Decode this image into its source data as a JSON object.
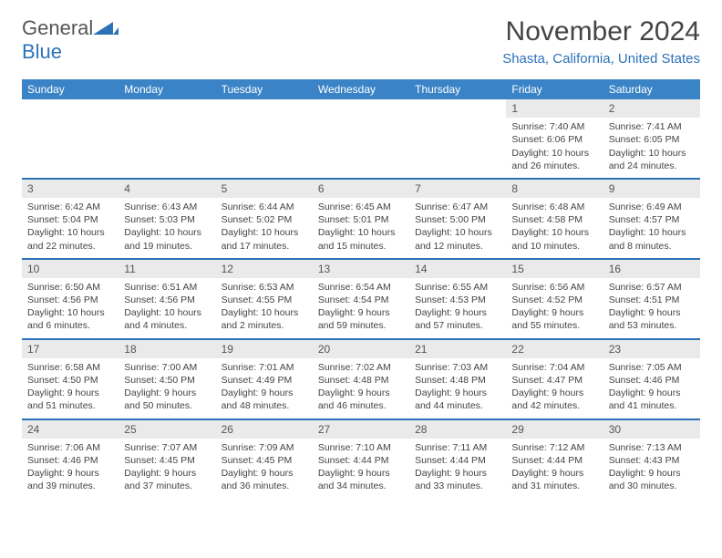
{
  "logo": {
    "text1": "General",
    "text2": "Blue"
  },
  "title": "November 2024",
  "location": "Shasta, California, United States",
  "colors": {
    "header_bg": "#3a83c6",
    "accent": "#2d72b8",
    "gray_bar": "#eaeaea",
    "text": "#444444"
  },
  "day_headers": [
    "Sunday",
    "Monday",
    "Tuesday",
    "Wednesday",
    "Thursday",
    "Friday",
    "Saturday"
  ],
  "weeks": [
    [
      {
        "day": "",
        "lines": []
      },
      {
        "day": "",
        "lines": []
      },
      {
        "day": "",
        "lines": []
      },
      {
        "day": "",
        "lines": []
      },
      {
        "day": "",
        "lines": []
      },
      {
        "day": "1",
        "lines": [
          "Sunrise: 7:40 AM",
          "Sunset: 6:06 PM",
          "Daylight: 10 hours",
          "and 26 minutes."
        ]
      },
      {
        "day": "2",
        "lines": [
          "Sunrise: 7:41 AM",
          "Sunset: 6:05 PM",
          "Daylight: 10 hours",
          "and 24 minutes."
        ]
      }
    ],
    [
      {
        "day": "3",
        "lines": [
          "Sunrise: 6:42 AM",
          "Sunset: 5:04 PM",
          "Daylight: 10 hours",
          "and 22 minutes."
        ]
      },
      {
        "day": "4",
        "lines": [
          "Sunrise: 6:43 AM",
          "Sunset: 5:03 PM",
          "Daylight: 10 hours",
          "and 19 minutes."
        ]
      },
      {
        "day": "5",
        "lines": [
          "Sunrise: 6:44 AM",
          "Sunset: 5:02 PM",
          "Daylight: 10 hours",
          "and 17 minutes."
        ]
      },
      {
        "day": "6",
        "lines": [
          "Sunrise: 6:45 AM",
          "Sunset: 5:01 PM",
          "Daylight: 10 hours",
          "and 15 minutes."
        ]
      },
      {
        "day": "7",
        "lines": [
          "Sunrise: 6:47 AM",
          "Sunset: 5:00 PM",
          "Daylight: 10 hours",
          "and 12 minutes."
        ]
      },
      {
        "day": "8",
        "lines": [
          "Sunrise: 6:48 AM",
          "Sunset: 4:58 PM",
          "Daylight: 10 hours",
          "and 10 minutes."
        ]
      },
      {
        "day": "9",
        "lines": [
          "Sunrise: 6:49 AM",
          "Sunset: 4:57 PM",
          "Daylight: 10 hours",
          "and 8 minutes."
        ]
      }
    ],
    [
      {
        "day": "10",
        "lines": [
          "Sunrise: 6:50 AM",
          "Sunset: 4:56 PM",
          "Daylight: 10 hours",
          "and 6 minutes."
        ]
      },
      {
        "day": "11",
        "lines": [
          "Sunrise: 6:51 AM",
          "Sunset: 4:56 PM",
          "Daylight: 10 hours",
          "and 4 minutes."
        ]
      },
      {
        "day": "12",
        "lines": [
          "Sunrise: 6:53 AM",
          "Sunset: 4:55 PM",
          "Daylight: 10 hours",
          "and 2 minutes."
        ]
      },
      {
        "day": "13",
        "lines": [
          "Sunrise: 6:54 AM",
          "Sunset: 4:54 PM",
          "Daylight: 9 hours",
          "and 59 minutes."
        ]
      },
      {
        "day": "14",
        "lines": [
          "Sunrise: 6:55 AM",
          "Sunset: 4:53 PM",
          "Daylight: 9 hours",
          "and 57 minutes."
        ]
      },
      {
        "day": "15",
        "lines": [
          "Sunrise: 6:56 AM",
          "Sunset: 4:52 PM",
          "Daylight: 9 hours",
          "and 55 minutes."
        ]
      },
      {
        "day": "16",
        "lines": [
          "Sunrise: 6:57 AM",
          "Sunset: 4:51 PM",
          "Daylight: 9 hours",
          "and 53 minutes."
        ]
      }
    ],
    [
      {
        "day": "17",
        "lines": [
          "Sunrise: 6:58 AM",
          "Sunset: 4:50 PM",
          "Daylight: 9 hours",
          "and 51 minutes."
        ]
      },
      {
        "day": "18",
        "lines": [
          "Sunrise: 7:00 AM",
          "Sunset: 4:50 PM",
          "Daylight: 9 hours",
          "and 50 minutes."
        ]
      },
      {
        "day": "19",
        "lines": [
          "Sunrise: 7:01 AM",
          "Sunset: 4:49 PM",
          "Daylight: 9 hours",
          "and 48 minutes."
        ]
      },
      {
        "day": "20",
        "lines": [
          "Sunrise: 7:02 AM",
          "Sunset: 4:48 PM",
          "Daylight: 9 hours",
          "and 46 minutes."
        ]
      },
      {
        "day": "21",
        "lines": [
          "Sunrise: 7:03 AM",
          "Sunset: 4:48 PM",
          "Daylight: 9 hours",
          "and 44 minutes."
        ]
      },
      {
        "day": "22",
        "lines": [
          "Sunrise: 7:04 AM",
          "Sunset: 4:47 PM",
          "Daylight: 9 hours",
          "and 42 minutes."
        ]
      },
      {
        "day": "23",
        "lines": [
          "Sunrise: 7:05 AM",
          "Sunset: 4:46 PM",
          "Daylight: 9 hours",
          "and 41 minutes."
        ]
      }
    ],
    [
      {
        "day": "24",
        "lines": [
          "Sunrise: 7:06 AM",
          "Sunset: 4:46 PM",
          "Daylight: 9 hours",
          "and 39 minutes."
        ]
      },
      {
        "day": "25",
        "lines": [
          "Sunrise: 7:07 AM",
          "Sunset: 4:45 PM",
          "Daylight: 9 hours",
          "and 37 minutes."
        ]
      },
      {
        "day": "26",
        "lines": [
          "Sunrise: 7:09 AM",
          "Sunset: 4:45 PM",
          "Daylight: 9 hours",
          "and 36 minutes."
        ]
      },
      {
        "day": "27",
        "lines": [
          "Sunrise: 7:10 AM",
          "Sunset: 4:44 PM",
          "Daylight: 9 hours",
          "and 34 minutes."
        ]
      },
      {
        "day": "28",
        "lines": [
          "Sunrise: 7:11 AM",
          "Sunset: 4:44 PM",
          "Daylight: 9 hours",
          "and 33 minutes."
        ]
      },
      {
        "day": "29",
        "lines": [
          "Sunrise: 7:12 AM",
          "Sunset: 4:44 PM",
          "Daylight: 9 hours",
          "and 31 minutes."
        ]
      },
      {
        "day": "30",
        "lines": [
          "Sunrise: 7:13 AM",
          "Sunset: 4:43 PM",
          "Daylight: 9 hours",
          "and 30 minutes."
        ]
      }
    ]
  ]
}
